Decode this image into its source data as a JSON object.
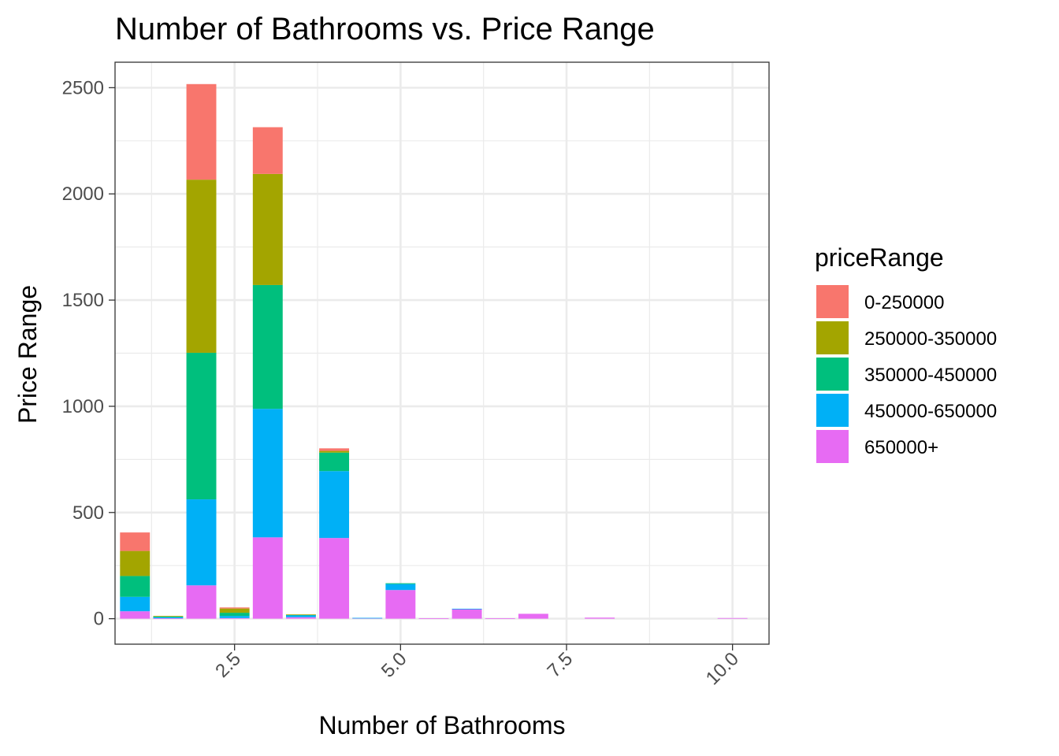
{
  "chart_data": {
    "type": "bar",
    "stacked": true,
    "title": "Number of Bathrooms vs. Price Range",
    "xlabel": "Number of Bathrooms",
    "ylabel": "Price Range",
    "xlim": [
      0.7,
      10.55
    ],
    "ylim": [
      -120,
      2620
    ],
    "x_ticks": [
      2.5,
      5.0,
      7.5,
      10.0
    ],
    "x_tick_labels": [
      "2.5",
      "5.0",
      "7.5",
      "10.0"
    ],
    "y_ticks": [
      0,
      500,
      1000,
      1500,
      2000,
      2500
    ],
    "y_tick_labels": [
      "0",
      "500",
      "1000",
      "1500",
      "2000",
      "2500"
    ],
    "grid": true,
    "legend_title": "priceRange",
    "legend_position": "right",
    "bar_width": 0.45,
    "x": [
      1,
      1.5,
      2,
      2.5,
      3,
      3.5,
      4,
      4.5,
      5,
      5.5,
      6,
      6.5,
      7,
      8,
      10
    ],
    "series": [
      {
        "name": "0-250000",
        "color": "#F8766D",
        "values": [
          87,
          0,
          450,
          5,
          220,
          0,
          12,
          0,
          0,
          0,
          0,
          0,
          0,
          0,
          0
        ]
      },
      {
        "name": "250000-350000",
        "color": "#A3A500",
        "values": [
          118,
          2,
          815,
          20,
          523,
          1,
          8,
          0,
          0,
          0,
          0,
          0,
          0,
          0,
          0
        ]
      },
      {
        "name": "350000-450000",
        "color": "#00BF7D",
        "values": [
          98,
          4,
          690,
          15,
          583,
          2,
          87,
          0,
          4,
          0,
          0,
          0,
          0,
          0,
          0
        ]
      },
      {
        "name": "450000-650000",
        "color": "#00B0F6",
        "values": [
          68,
          5,
          405,
          10,
          605,
          10,
          315,
          1,
          28,
          0,
          1,
          0,
          0,
          0,
          0
        ]
      },
      {
        "name": "650000+",
        "color": "#E76BF3",
        "values": [
          35,
          2,
          157,
          3,
          383,
          7,
          380,
          3,
          135,
          2,
          46,
          2,
          23,
          5,
          3
        ]
      }
    ]
  }
}
